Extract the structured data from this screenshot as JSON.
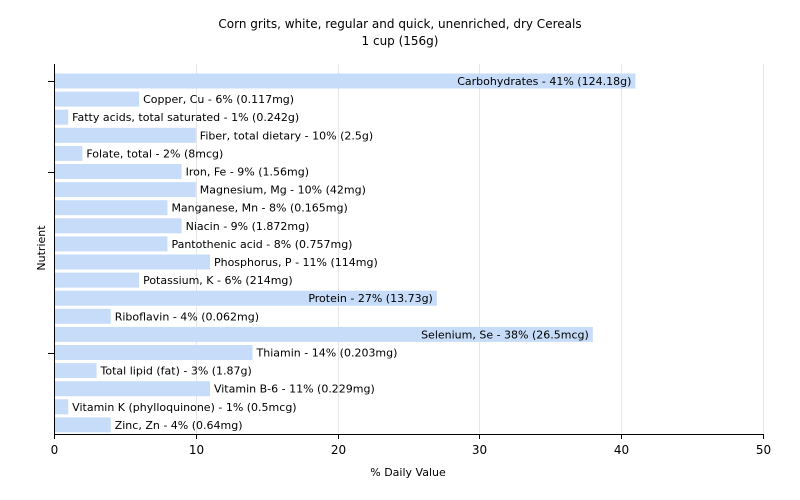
{
  "chart_data": {
    "type": "bar",
    "orientation": "horizontal",
    "title": "Corn grits, white, regular and quick, unenriched, dry Cereals",
    "subtitle": "1 cup (156g)",
    "xlabel": "% Daily Value",
    "ylabel": "Nutrient",
    "xlim": [
      0,
      50
    ],
    "xticks": [
      0,
      10,
      20,
      30,
      40,
      50
    ],
    "grid": true,
    "categories": [
      "Carbohydrates",
      "Copper, Cu",
      "Fatty acids, total saturated",
      "Fiber, total dietary",
      "Folate, total",
      "Iron, Fe",
      "Magnesium, Mg",
      "Manganese, Mn",
      "Niacin",
      "Pantothenic acid",
      "Phosphorus, P",
      "Potassium, K",
      "Protein",
      "Riboflavin",
      "Selenium, Se",
      "Thiamin",
      "Total lipid (fat)",
      "Vitamin B-6",
      "Vitamin K (phylloquinone)",
      "Zinc, Zn"
    ],
    "values": [
      41,
      6,
      1,
      10,
      2,
      9,
      10,
      8,
      9,
      8,
      11,
      6,
      27,
      4,
      38,
      14,
      3,
      11,
      1,
      4
    ],
    "labels": [
      "Carbohydrates - 41% (124.18g)",
      "Copper, Cu - 6% (0.117mg)",
      "Fatty acids, total saturated - 1% (0.242g)",
      "Fiber, total dietary - 10% (2.5g)",
      "Folate, total - 2% (8mcg)",
      "Iron, Fe - 9% (1.56mg)",
      "Magnesium, Mg - 10% (42mg)",
      "Manganese, Mn - 8% (0.165mg)",
      "Niacin - 9% (1.872mg)",
      "Pantothenic acid - 8% (0.757mg)",
      "Phosphorus, P - 11% (114mg)",
      "Potassium, K - 6% (214mg)",
      "Protein - 27% (13.73g)",
      "Riboflavin - 4% (0.062mg)",
      "Selenium, Se - 38% (26.5mcg)",
      "Thiamin - 14% (0.203mg)",
      "Total lipid (fat) - 3% (1.87g)",
      "Vitamin B-6 - 11% (0.229mg)",
      "Vitamin K (phylloquinone) - 1% (0.5mcg)",
      "Zinc, Zn - 4% (0.64mg)"
    ],
    "bar_color": "#c6dcf8"
  }
}
